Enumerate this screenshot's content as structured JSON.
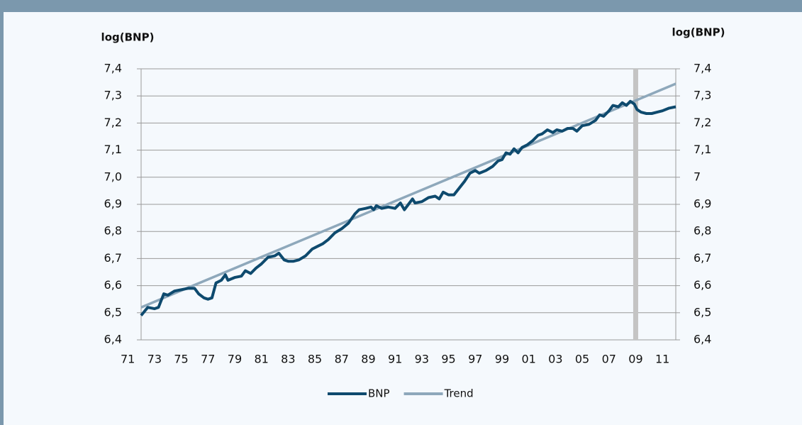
{
  "chart_data": {
    "type": "line",
    "y_label": "log(BNP)",
    "y2_label": "log(BNP)",
    "xlim": [
      1972,
      2012
    ],
    "xticks": [
      {
        "value": 1971,
        "label": "71"
      },
      {
        "value": 1973,
        "label": "73"
      },
      {
        "value": 1975,
        "label": "75"
      },
      {
        "value": 1977,
        "label": "77"
      },
      {
        "value": 1979,
        "label": "79"
      },
      {
        "value": 1981,
        "label": "81"
      },
      {
        "value": 1983,
        "label": "83"
      },
      {
        "value": 1985,
        "label": "85"
      },
      {
        "value": 1987,
        "label": "87"
      },
      {
        "value": 1989,
        "label": "89"
      },
      {
        "value": 1991,
        "label": "91"
      },
      {
        "value": 1993,
        "label": "93"
      },
      {
        "value": 1995,
        "label": "95"
      },
      {
        "value": 1997,
        "label": "97"
      },
      {
        "value": 1999,
        "label": "99"
      },
      {
        "value": 2001,
        "label": "01"
      },
      {
        "value": 2003,
        "label": "03"
      },
      {
        "value": 2005,
        "label": "05"
      },
      {
        "value": 2007,
        "label": "07"
      },
      {
        "value": 2009,
        "label": "09"
      },
      {
        "value": 2011,
        "label": "11"
      }
    ],
    "ylim": [
      6.4,
      7.4
    ],
    "yticks": [
      {
        "value": 6.4,
        "label": "6,4"
      },
      {
        "value": 6.5,
        "label": "6,5"
      },
      {
        "value": 6.6,
        "label": "6,6"
      },
      {
        "value": 6.7,
        "label": "6,7"
      },
      {
        "value": 6.8,
        "label": "6,8"
      },
      {
        "value": 6.9,
        "label": "6,9"
      },
      {
        "value": 7.0,
        "label": "7,0"
      },
      {
        "value": 7.1,
        "label": "7,1"
      },
      {
        "value": 7.2,
        "label": "7,2"
      },
      {
        "value": 7.3,
        "label": "7,3"
      },
      {
        "value": 7.4,
        "label": "7,4"
      }
    ],
    "y2lim": [
      6.4,
      7.4
    ],
    "y2ticks": [
      {
        "value": 6.4,
        "label": "6,4"
      },
      {
        "value": 6.5,
        "label": "6,5"
      },
      {
        "value": 6.6,
        "label": "6,6"
      },
      {
        "value": 6.7,
        "label": "6,7"
      },
      {
        "value": 6.8,
        "label": "6,8"
      },
      {
        "value": 6.9,
        "label": "6,9"
      },
      7,
      {
        "value": 7.1,
        "label": "7,1"
      },
      {
        "value": 7.2,
        "label": "7,2"
      },
      {
        "value": 7.3,
        "label": "7,3"
      },
      {
        "value": 7.4,
        "label": "7,4"
      }
    ],
    "grid": true,
    "vline": 2009,
    "vline_color": "#c4c4c4",
    "legend": "bottom",
    "series": [
      {
        "name": "BNP",
        "color": "#0e4a6e",
        "x": [
          1972.0,
          1972.5,
          1973.0,
          1973.3,
          1973.7,
          1974.0,
          1974.5,
          1975.0,
          1975.5,
          1976.0,
          1976.3,
          1976.7,
          1977.0,
          1977.3,
          1977.6,
          1978.0,
          1978.3,
          1978.5,
          1979.0,
          1979.5,
          1979.8,
          1980.2,
          1980.6,
          1981.0,
          1981.5,
          1982.0,
          1982.3,
          1982.7,
          1983.0,
          1983.4,
          1983.8,
          1984.3,
          1984.8,
          1985.2,
          1985.6,
          1986.0,
          1986.5,
          1987.0,
          1987.5,
          1988.0,
          1988.3,
          1988.8,
          1989.2,
          1989.4,
          1989.6,
          1990.0,
          1990.5,
          1991.0,
          1991.4,
          1991.7,
          1992.0,
          1992.3,
          1992.5,
          1993.0,
          1993.5,
          1994.0,
          1994.3,
          1994.6,
          1995.0,
          1995.4,
          1995.8,
          1996.2,
          1996.6,
          1997.0,
          1997.3,
          1997.8,
          1998.3,
          1998.7,
          1999.0,
          1999.3,
          1999.6,
          1999.9,
          2000.2,
          2000.5,
          2000.9,
          2001.3,
          2001.7,
          2002.0,
          2002.4,
          2002.8,
          2003.1,
          2003.5,
          2003.9,
          2004.3,
          2004.6,
          2005.0,
          2005.5,
          2006.0,
          2006.3,
          2006.6,
          2007.0,
          2007.3,
          2007.7,
          2008.0,
          2008.3,
          2008.6,
          2008.9,
          2009.1,
          2009.4,
          2009.8,
          2010.2,
          2010.6,
          2011.0,
          2011.5,
          2012.0
        ],
        "values": [
          6.49,
          6.52,
          6.515,
          6.52,
          6.57,
          6.565,
          6.58,
          6.585,
          6.59,
          6.59,
          6.57,
          6.555,
          6.55,
          6.555,
          6.61,
          6.62,
          6.64,
          6.62,
          6.63,
          6.635,
          6.655,
          6.645,
          6.665,
          6.68,
          6.705,
          6.71,
          6.72,
          6.695,
          6.69,
          6.69,
          6.695,
          6.71,
          6.735,
          6.745,
          6.755,
          6.77,
          6.795,
          6.81,
          6.83,
          6.865,
          6.88,
          6.885,
          6.89,
          6.88,
          6.895,
          6.885,
          6.89,
          6.885,
          6.905,
          6.88,
          6.9,
          6.92,
          6.905,
          6.91,
          6.925,
          6.93,
          6.92,
          6.945,
          6.935,
          6.935,
          6.96,
          6.985,
          7.015,
          7.025,
          7.015,
          7.025,
          7.04,
          7.06,
          7.065,
          7.09,
          7.085,
          7.105,
          7.09,
          7.11,
          7.12,
          7.135,
          7.155,
          7.16,
          7.175,
          7.165,
          7.175,
          7.17,
          7.18,
          7.18,
          7.17,
          7.19,
          7.195,
          7.21,
          7.23,
          7.225,
          7.245,
          7.265,
          7.26,
          7.275,
          7.265,
          7.28,
          7.27,
          7.25,
          7.24,
          7.235,
          7.235,
          7.24,
          7.245,
          7.255,
          7.26
        ]
      },
      {
        "name": "Trend",
        "color": "#8ea8bb",
        "x": [
          1972,
          2012
        ],
        "values": [
          6.52,
          7.345
        ]
      }
    ]
  }
}
